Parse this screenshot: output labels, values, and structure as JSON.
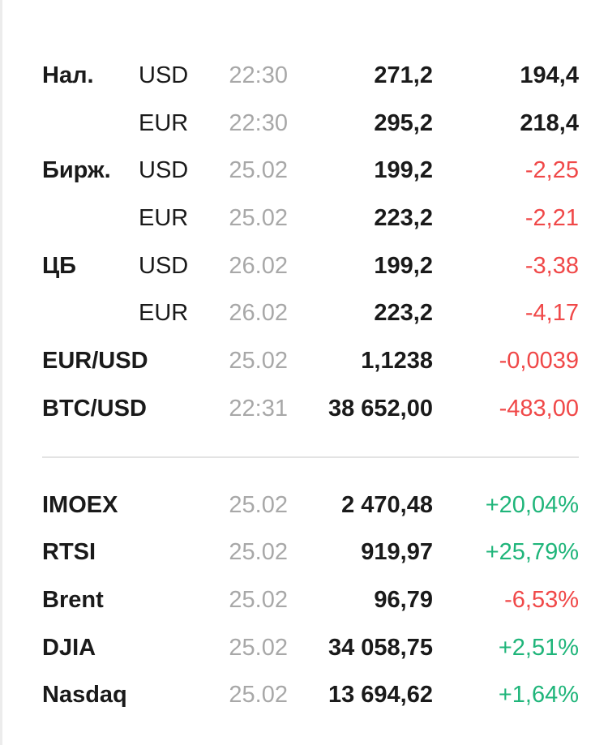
{
  "currency_rows": [
    {
      "name": "Нал.",
      "currency": "USD",
      "time": "22:30",
      "value": "271,2",
      "change": "194,4",
      "trend": "neutral"
    },
    {
      "name": "",
      "currency": "EUR",
      "time": "22:30",
      "value": "295,2",
      "change": "218,4",
      "trend": "neutral"
    },
    {
      "name": "Бирж.",
      "currency": "USD",
      "time": "25.02",
      "value": "199,2",
      "change": "-2,25",
      "trend": "neg"
    },
    {
      "name": "",
      "currency": "EUR",
      "time": "25.02",
      "value": "223,2",
      "change": "-2,21",
      "trend": "neg"
    },
    {
      "name": "ЦБ",
      "currency": "USD",
      "time": "26.02",
      "value": "199,2",
      "change": "-3,38",
      "trend": "neg"
    },
    {
      "name": "",
      "currency": "EUR",
      "time": "26.02",
      "value": "223,2",
      "change": "-4,17",
      "trend": "neg"
    },
    {
      "name": "EUR/USD",
      "currency": "",
      "time": "25.02",
      "value": "1,1238",
      "change": "-0,0039",
      "trend": "neg"
    },
    {
      "name": "BTC/USD",
      "currency": "",
      "time": "22:31",
      "value": "38 652,00",
      "change": "-483,00",
      "trend": "neg"
    }
  ],
  "index_rows": [
    {
      "name": "IMOEX",
      "currency": "",
      "time": "25.02",
      "value": "2 470,48",
      "change": "+20,04%",
      "trend": "pos"
    },
    {
      "name": "RTSI",
      "currency": "",
      "time": "25.02",
      "value": "919,97",
      "change": "+25,79%",
      "trend": "pos"
    },
    {
      "name": "Brent",
      "currency": "",
      "time": "25.02",
      "value": "96,79",
      "change": "-6,53%",
      "trend": "neg"
    },
    {
      "name": "DJIA",
      "currency": "",
      "time": "25.02",
      "value": "34 058,75",
      "change": "+2,51%",
      "trend": "pos"
    },
    {
      "name": "Nasdaq",
      "currency": "",
      "time": "25.02",
      "value": "13 694,62",
      "change": "+1,64%",
      "trend": "pos"
    }
  ],
  "colors": {
    "negative": "#f04848",
    "positive": "#1fb57a",
    "time": "#a8a8a8",
    "text": "#1a1a1a"
  }
}
